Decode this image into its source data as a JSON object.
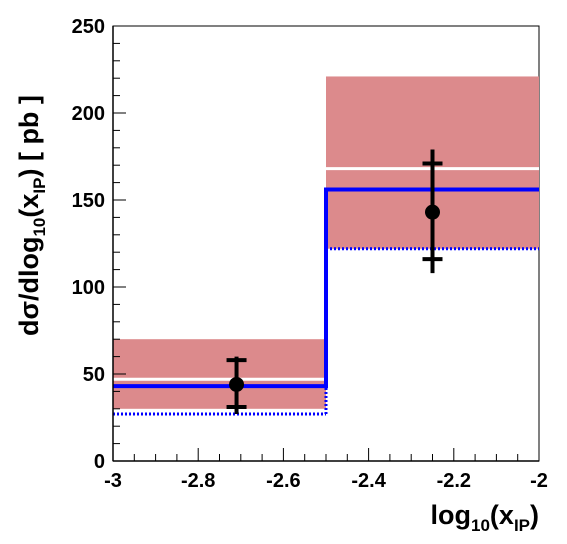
{
  "chart_data": {
    "type": "bar",
    "xlabel_main": "log",
    "xlabel_sub1": "10",
    "xlabel_open": "(x",
    "xlabel_sub2": "IP",
    "xlabel_close": ")",
    "ylabel_main": "dσ/dlog",
    "ylabel_sub1": "10",
    "ylabel_open": "(x",
    "ylabel_sub2": "IP",
    "ylabel_close": ") [ pb ]",
    "xlim": [
      -3,
      -2
    ],
    "ylim": [
      0,
      250
    ],
    "xticks": [
      -3,
      -2.8,
      -2.6,
      -2.4,
      -2.2,
      -2
    ],
    "xtick_labels": [
      "-3",
      "-2.8",
      "-2.6",
      "-2.4",
      "-2.2",
      "-2"
    ],
    "yticks": [
      0,
      50,
      100,
      150,
      200,
      250
    ],
    "ytick_labels": [
      "0",
      "50",
      "100",
      "150",
      "200",
      "250"
    ],
    "grid": false,
    "bins": [
      {
        "x_low": -3.0,
        "x_high": -2.5,
        "band_low": 30,
        "band_high": 70,
        "band_center": 47,
        "theory_solid": 43,
        "theory_dotted": 27,
        "data_x": -2.71,
        "data_y": 44,
        "stat_low": 31,
        "stat_high": 58,
        "tot_low": 27,
        "tot_high": 60
      },
      {
        "x_low": -2.5,
        "x_high": -2.0,
        "band_low": 122,
        "band_high": 221,
        "band_center": 168,
        "theory_solid": 156,
        "theory_dotted": 122,
        "data_x": -2.25,
        "data_y": 143,
        "stat_low": 116,
        "stat_high": 171,
        "tot_low": 108,
        "tot_high": 179
      }
    ],
    "colors": {
      "band": "#dc8a8c",
      "band_center": "#ffffff",
      "theory": "#0000ff",
      "data": "#000000"
    }
  }
}
